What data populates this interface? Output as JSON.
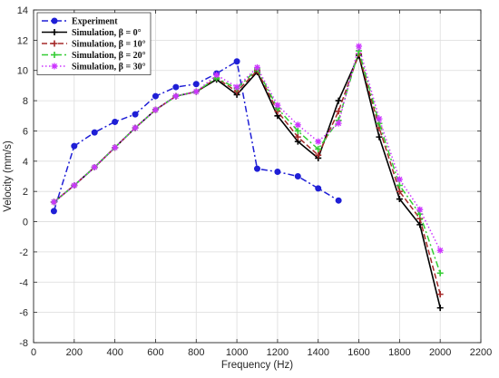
{
  "chart_data": {
    "type": "line",
    "xlabel": "Frequency (Hz)",
    "ylabel": "Velocity (mm/s)",
    "xlim": [
      0,
      2200
    ],
    "ylim": [
      -8,
      14
    ],
    "xticks": [
      0,
      200,
      400,
      600,
      800,
      1000,
      1200,
      1400,
      1600,
      1800,
      2000,
      2200
    ],
    "yticks": [
      -8,
      -6,
      -4,
      -2,
      0,
      2,
      4,
      6,
      8,
      10,
      12,
      14
    ],
    "grid": true,
    "legend_position": "top-left",
    "series": [
      {
        "name": "Experiment",
        "color": "#1f1fd6",
        "line_style": "dash-dot",
        "marker": "circle",
        "x": [
          100,
          200,
          300,
          400,
          500,
          600,
          700,
          800,
          900,
          1000,
          1100,
          1200,
          1300,
          1400,
          1500
        ],
        "y": [
          0.7,
          5.0,
          5.9,
          6.6,
          7.1,
          8.3,
          8.9,
          9.1,
          9.8,
          10.6,
          3.5,
          3.3,
          3.0,
          2.2,
          1.4
        ]
      },
      {
        "name": "Simulation, β = 0°",
        "color": "#000000",
        "line_style": "solid",
        "marker": "plus",
        "x": [
          100,
          200,
          300,
          400,
          500,
          600,
          700,
          800,
          900,
          1000,
          1100,
          1200,
          1300,
          1400,
          1500,
          1600,
          1700,
          1800,
          1900,
          2000
        ],
        "y": [
          1.3,
          2.4,
          3.6,
          4.9,
          6.2,
          7.4,
          8.3,
          8.6,
          9.4,
          8.4,
          9.9,
          7.0,
          5.3,
          4.2,
          8.0,
          11.0,
          5.6,
          1.5,
          -0.2,
          -5.7
        ]
      },
      {
        "name": "Simulation, β = 10°",
        "color": "#a52a2a",
        "line_style": "dashed",
        "marker": "plus",
        "x": [
          100,
          200,
          300,
          400,
          500,
          600,
          700,
          800,
          900,
          1000,
          1100,
          1200,
          1300,
          1400,
          1500,
          1600,
          1700,
          1800,
          1900,
          2000
        ],
        "y": [
          1.3,
          2.4,
          3.6,
          4.9,
          6.2,
          7.4,
          8.3,
          8.6,
          9.5,
          8.6,
          10.0,
          7.3,
          5.6,
          4.4,
          7.3,
          11.1,
          6.2,
          2.0,
          0.2,
          -4.8
        ]
      },
      {
        "name": "Simulation, β = 20°",
        "color": "#33cc33",
        "line_style": "dash-dot",
        "marker": "plus",
        "x": [
          100,
          200,
          300,
          400,
          500,
          600,
          700,
          800,
          900,
          1000,
          1100,
          1200,
          1300,
          1400,
          1500,
          1600,
          1700,
          1800,
          1900,
          2000
        ],
        "y": [
          1.3,
          2.4,
          3.6,
          4.9,
          6.2,
          7.4,
          8.3,
          8.6,
          9.5,
          8.8,
          10.1,
          7.5,
          6.0,
          4.8,
          6.7,
          11.3,
          6.5,
          2.4,
          0.5,
          -3.4
        ]
      },
      {
        "name": "Simulation, β = 30°",
        "color": "#cc33ff",
        "line_style": "dotted",
        "marker": "star",
        "x": [
          100,
          200,
          300,
          400,
          500,
          600,
          700,
          800,
          900,
          1000,
          1100,
          1200,
          1300,
          1400,
          1500,
          1600,
          1700,
          1800,
          1900,
          2000
        ],
        "y": [
          1.3,
          2.4,
          3.6,
          4.9,
          6.2,
          7.4,
          8.3,
          8.6,
          9.7,
          8.9,
          10.2,
          7.7,
          6.4,
          5.3,
          6.5,
          11.6,
          6.8,
          2.8,
          0.8,
          -1.9
        ]
      }
    ]
  }
}
